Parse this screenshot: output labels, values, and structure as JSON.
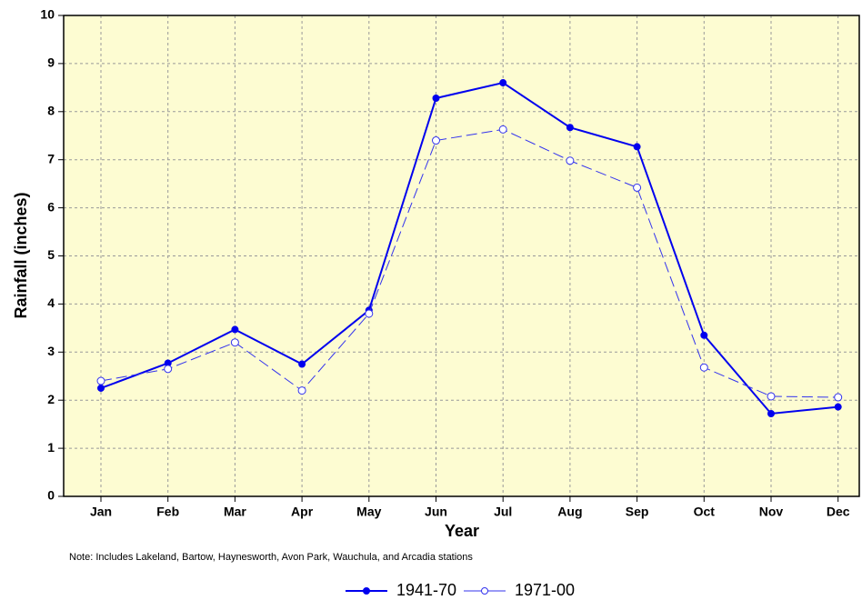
{
  "chart_data": {
    "type": "line",
    "y_label": "Rainfall  (inches)",
    "x_label": "Year",
    "note": "Note: Includes Lakeland, Bartow, Haynesworth, Avon Park, Wauchula, and Arcadia stations",
    "categories": [
      "Jan",
      "Feb",
      "Mar",
      "Apr",
      "May",
      "Jun",
      "Jul",
      "Aug",
      "Sep",
      "Oct",
      "Nov",
      "Dec"
    ],
    "series": [
      {
        "name": "1941-70",
        "color": "#0000ee",
        "line_style": "solid",
        "marker": "filled",
        "values": [
          2.25,
          2.77,
          3.47,
          2.75,
          3.87,
          8.28,
          8.6,
          7.67,
          7.27,
          3.35,
          1.72,
          1.86
        ]
      },
      {
        "name": "1971-00",
        "color": "#3333ee",
        "line_style": "dashed",
        "marker": "hollow",
        "values": [
          2.4,
          2.65,
          3.2,
          2.2,
          3.8,
          7.4,
          7.63,
          6.98,
          6.42,
          2.68,
          2.08,
          2.06
        ]
      }
    ],
    "ylim": [
      0,
      10
    ],
    "yticks": [
      0,
      1,
      2,
      3,
      4,
      5,
      6,
      7,
      8,
      9,
      10
    ],
    "grid": true,
    "background": "#fdfcd2",
    "legend": "bottom"
  }
}
